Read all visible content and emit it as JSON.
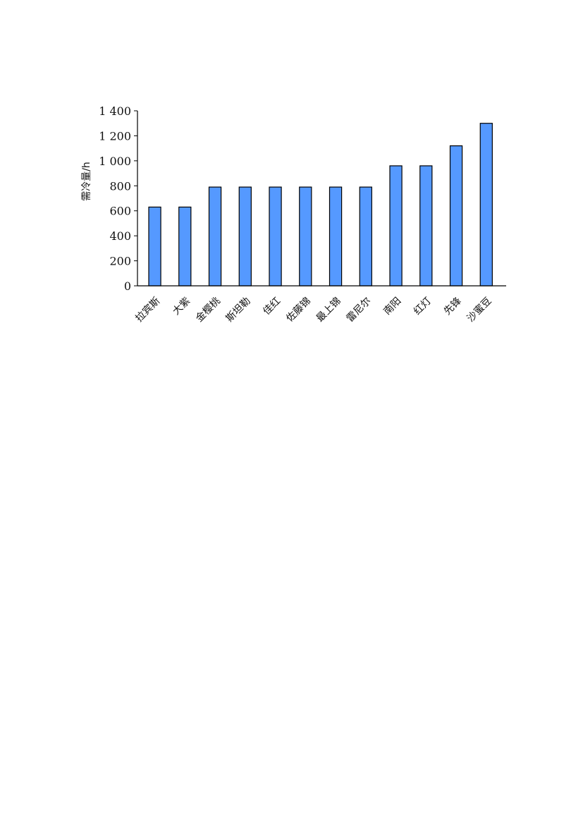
{
  "chart_data": {
    "type": "bar",
    "title": "",
    "xlabel": "",
    "ylabel": "需冷量/h",
    "ylim": [
      0,
      1400
    ],
    "yticks": [
      0,
      200,
      400,
      600,
      800,
      1000,
      1200,
      1400
    ],
    "ytick_labels": [
      "0",
      "200",
      "400",
      "600",
      "800",
      "1 000",
      "1 200",
      "1 400"
    ],
    "grid": false,
    "bar_color": "#5599ff",
    "categories": [
      "拉宾斯",
      "大紫",
      "金樱桃",
      "斯坦勒",
      "佳红",
      "佐藤锦",
      "最上锦",
      "雷尼尔",
      "南阳",
      "红灯",
      "先锋",
      "沙蜜豆"
    ],
    "values": [
      630,
      630,
      790,
      790,
      790,
      790,
      790,
      790,
      960,
      960,
      1120,
      1300
    ]
  }
}
